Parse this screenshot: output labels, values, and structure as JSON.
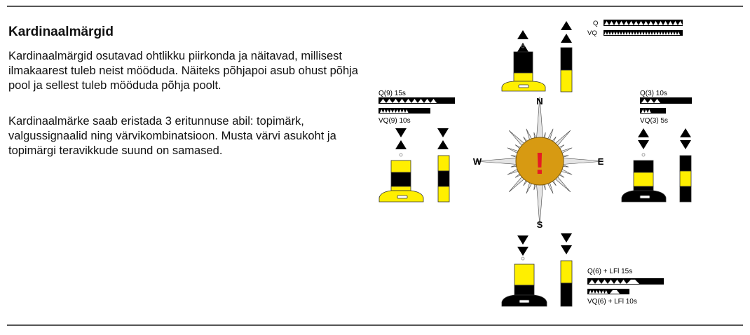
{
  "heading": "Kardinaalmärgid",
  "paragraphs": {
    "p1": "Kardinaalmärgid osutavad ohtlikku piirkonda ja näitavad, millisest ilmakaarest tuleb neist mööduda. Näiteks põhjapoi asub ohust põhja pool ja sellest tuleb mööduda põhja poolt.",
    "p2": "Kardinaalmärke saab eristada 3 eritunnuse abil: topimärk, valgussignaalid ning värvikombinatsioon. Musta värvi asukoht ja topimärgi teravikkude suund on samased."
  },
  "compass": {
    "n": "N",
    "s": "S",
    "e": "E",
    "w": "W",
    "center_symbol": "!"
  },
  "signals": {
    "north_q": "Q",
    "north_vq": "VQ",
    "west_q": "Q(9)  15s",
    "west_vq": "VQ(9)  10s",
    "east_q": "Q(3)  10s",
    "east_vq": "VQ(3)  5s",
    "south_q": "Q(6) + LFl  15s",
    "south_vq": "VQ(6) + LFl  10s"
  },
  "colors": {
    "yellow": "#ffef00",
    "black": "#000000",
    "compass_fill": "#d79a12",
    "exclamation": "#e51c23"
  }
}
